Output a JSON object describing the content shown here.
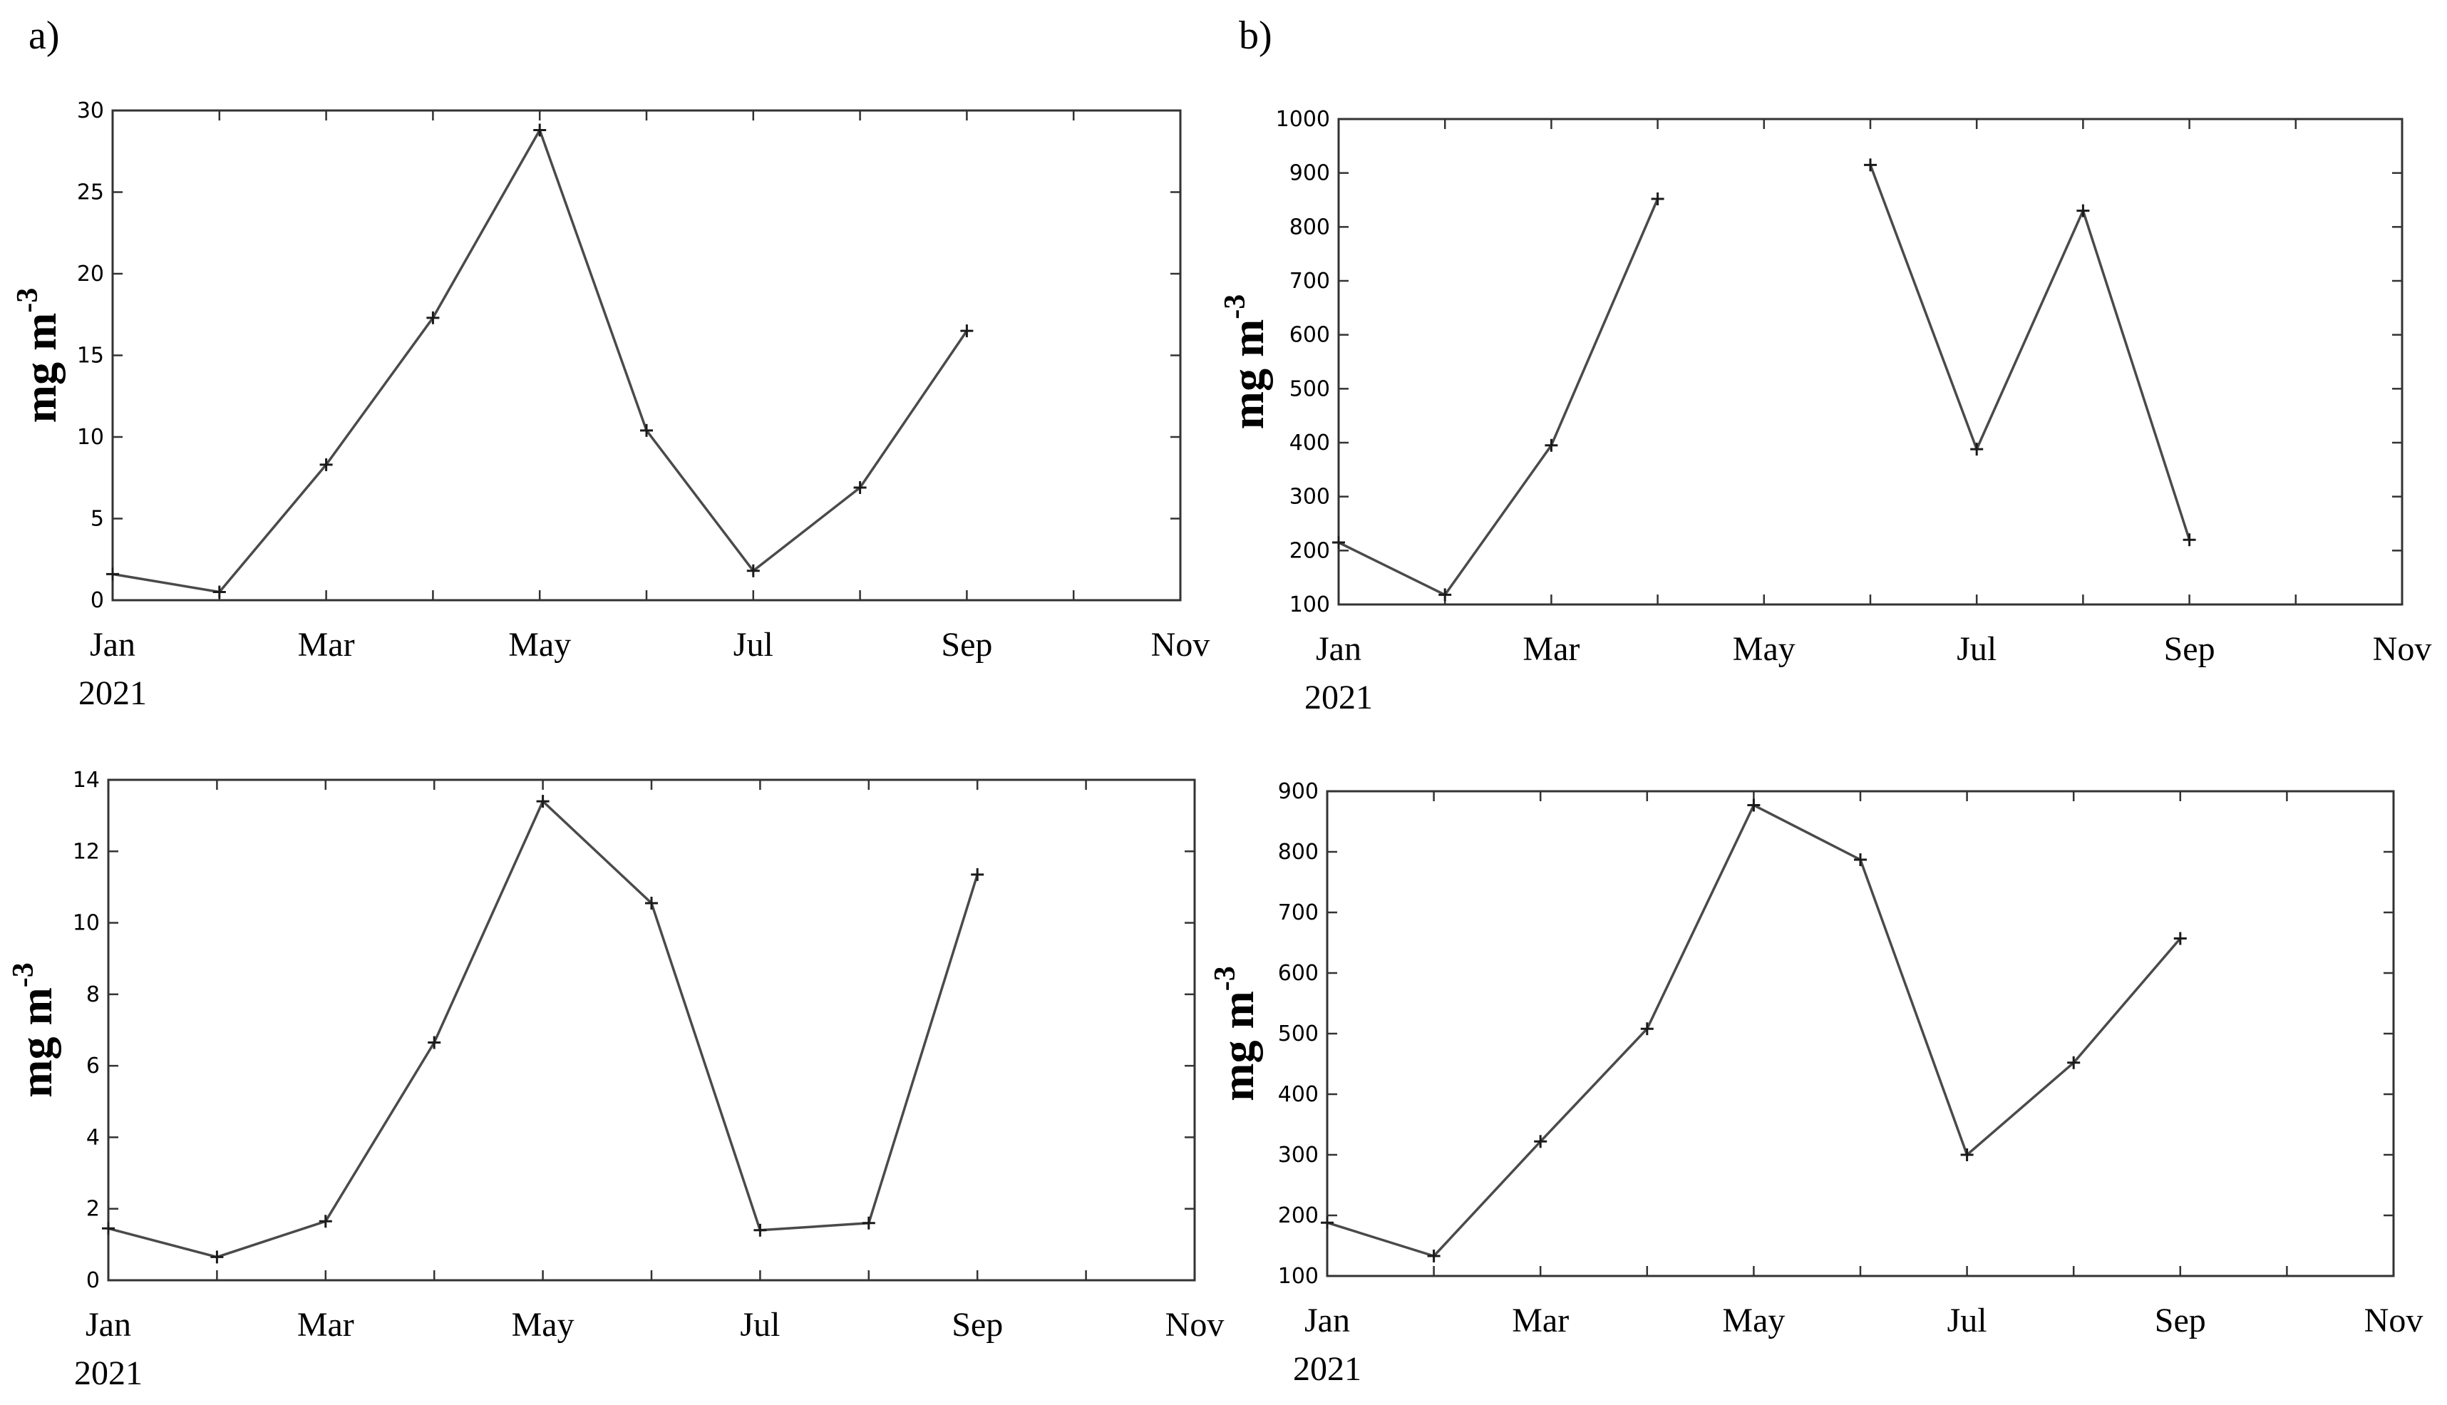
{
  "panels": [
    {
      "id": "a",
      "label": "a)"
    },
    {
      "id": "b",
      "label": "b)"
    }
  ],
  "chart_data": [
    {
      "type": "line",
      "panel": "a",
      "position": "top",
      "title": "",
      "ylabel": "mg m",
      "ylabel_sup": "-3",
      "xlabel": "",
      "x_ticks": [
        "Jan",
        "Mar",
        "May",
        "Jul",
        "Sep",
        "Nov"
      ],
      "x_tick_months": [
        0,
        2,
        4,
        6,
        8,
        10
      ],
      "year_label": "2021",
      "xlim": [
        0,
        10
      ],
      "ylim": [
        0,
        30
      ],
      "y_ticks": [
        0,
        5,
        10,
        15,
        20,
        25,
        30
      ],
      "segments": [
        [
          [
            0,
            1.6
          ],
          [
            1,
            0.5
          ],
          [
            2,
            8.3
          ],
          [
            3,
            17.3
          ],
          [
            4,
            28.8
          ],
          [
            5,
            10.4
          ],
          [
            6,
            1.8
          ],
          [
            7,
            6.9
          ],
          [
            8,
            16.5
          ]
        ]
      ]
    },
    {
      "type": "line",
      "panel": "a",
      "position": "bottom",
      "title": "",
      "ylabel": "mg m",
      "ylabel_sup": "-3",
      "xlabel": "",
      "x_ticks": [
        "Jan",
        "Mar",
        "May",
        "Jul",
        "Sep",
        "Nov"
      ],
      "x_tick_months": [
        0,
        2,
        4,
        6,
        8,
        10
      ],
      "year_label": "2021",
      "xlim": [
        0,
        10
      ],
      "ylim": [
        0,
        14
      ],
      "y_ticks": [
        0,
        2,
        4,
        6,
        8,
        10,
        12,
        14
      ],
      "segments": [
        [
          [
            0,
            1.45
          ],
          [
            1,
            0.65
          ],
          [
            2,
            1.65
          ],
          [
            3,
            6.65
          ],
          [
            4,
            13.4
          ],
          [
            5,
            10.55
          ],
          [
            6,
            1.4
          ],
          [
            7,
            1.6
          ],
          [
            8,
            11.35
          ]
        ]
      ]
    },
    {
      "type": "line",
      "panel": "b",
      "position": "top",
      "title": "",
      "ylabel": "mg m",
      "ylabel_sup": "-3",
      "xlabel": "",
      "x_ticks": [
        "Jan",
        "Mar",
        "May",
        "Jul",
        "Sep",
        "Nov"
      ],
      "x_tick_months": [
        0,
        2,
        4,
        6,
        8,
        10
      ],
      "year_label": "2021",
      "xlim": [
        0,
        10
      ],
      "ylim": [
        100,
        1000
      ],
      "y_ticks": [
        100,
        200,
        300,
        400,
        500,
        600,
        700,
        800,
        900,
        1000
      ],
      "segments": [
        [
          [
            0,
            215
          ],
          [
            1,
            118
          ],
          [
            2,
            395
          ],
          [
            3,
            852
          ]
        ],
        [
          [
            5,
            915
          ],
          [
            6,
            388
          ],
          [
            7,
            830
          ],
          [
            8,
            220
          ]
        ]
      ]
    },
    {
      "type": "line",
      "panel": "b",
      "position": "bottom",
      "title": "",
      "ylabel": "mg m",
      "ylabel_sup": "-3",
      "xlabel": "",
      "x_ticks": [
        "Jan",
        "Mar",
        "May",
        "Jul",
        "Sep",
        "Nov"
      ],
      "x_tick_months": [
        0,
        2,
        4,
        6,
        8,
        10
      ],
      "year_label": "2021",
      "xlim": [
        0,
        10
      ],
      "ylim": [
        100,
        900
      ],
      "y_ticks": [
        100,
        200,
        300,
        400,
        500,
        600,
        700,
        800,
        900
      ],
      "segments": [
        [
          [
            0,
            188
          ],
          [
            1,
            133
          ],
          [
            2,
            322
          ],
          [
            3,
            508
          ],
          [
            4,
            877
          ],
          [
            5,
            787
          ],
          [
            6,
            300
          ],
          [
            7,
            452
          ],
          [
            8,
            657
          ]
        ]
      ]
    }
  ]
}
